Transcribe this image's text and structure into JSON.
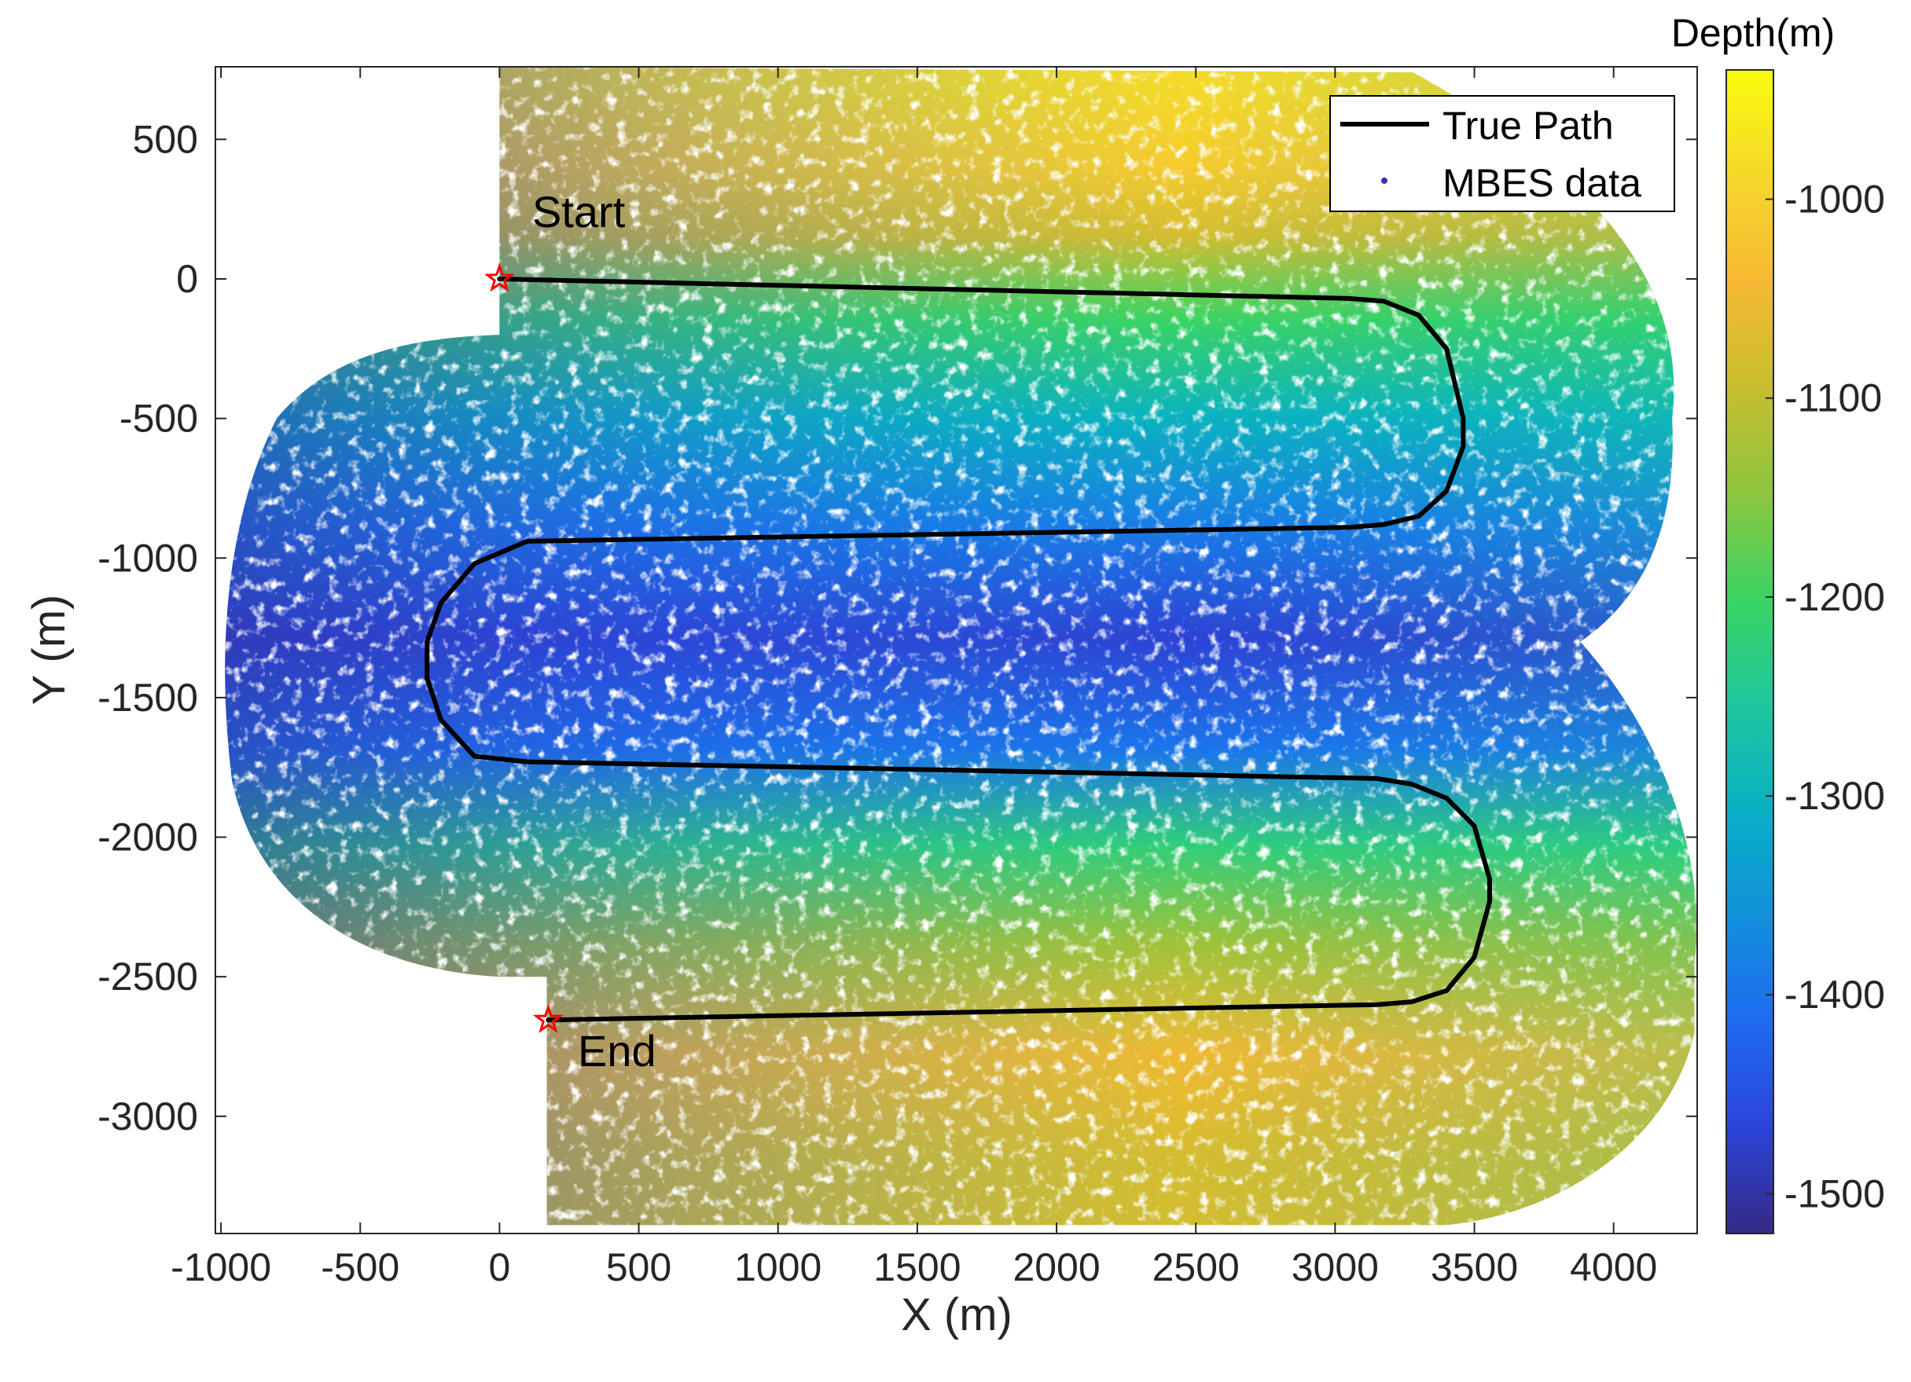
{
  "chart_data": {
    "type": "scatter",
    "xlabel": "X (m)",
    "ylabel": "Y (m)",
    "xlim": [
      -1020,
      4300
    ],
    "ylim": [
      -3420,
      760
    ],
    "xticks": [
      -1000,
      -500,
      0,
      500,
      1000,
      1500,
      2000,
      2500,
      3000,
      3500,
      4000
    ],
    "yticks": [
      500,
      0,
      -500,
      -1000,
      -1500,
      -2000,
      -2500,
      -3000
    ],
    "grid": false,
    "legend_position": "top-right",
    "series": [
      {
        "name": "True Path",
        "kind": "line",
        "color": "#000000",
        "x": [
          0,
          3050,
          3175,
          3300,
          3400,
          3460,
          3460,
          3400,
          3300,
          3175,
          3050,
          100,
          -90,
          -210,
          -260,
          -260,
          -210,
          -90,
          100,
          3150,
          3275,
          3400,
          3500,
          3555,
          3555,
          3500,
          3400,
          3275,
          3150,
          175
        ],
        "y": [
          0,
          -70,
          -80,
          -130,
          -250,
          -500,
          -600,
          -760,
          -850,
          -880,
          -890,
          -940,
          -1020,
          -1160,
          -1300,
          -1430,
          -1580,
          -1710,
          -1730,
          -1790,
          -1810,
          -1860,
          -1960,
          -2150,
          -2230,
          -2430,
          -2550,
          -2590,
          -2600,
          -2655
        ]
      },
      {
        "name": "MBES data",
        "kind": "scatter",
        "color": "#3b2eb8",
        "footprint": {
          "top_left_x": 0,
          "top_left_y": 760,
          "top_right_x": 3280,
          "right_outer_x": 4270,
          "bottom_left_x": 170,
          "bottom_y": -3390,
          "west_lobe_x": -1010,
          "west_lobe_y_top": -210,
          "west_lobe_y_bottom": -2480,
          "east_notch_x": 3880,
          "east_notch_y": -1300
        }
      }
    ],
    "markers": [
      {
        "label": "Start",
        "x": 0,
        "y": 0,
        "symbol": "star",
        "color": "#ff0000"
      },
      {
        "label": "End",
        "x": 175,
        "y": -2655,
        "symbol": "star",
        "color": "#ff0000"
      }
    ],
    "colorbar": {
      "title": "Depth(m)",
      "range": [
        -1520,
        -935
      ],
      "ticks": [
        -1000,
        -1100,
        -1200,
        -1300,
        -1400,
        -1500
      ],
      "colormap": "parula",
      "stops": [
        "#352a87",
        "#2c44d9",
        "#1f6bf0",
        "#1190db",
        "#08b0c4",
        "#1fc79e",
        "#3ad463",
        "#8dc63f",
        "#c7be2d",
        "#f7b933",
        "#f5d82a",
        "#f9fb0e"
      ]
    },
    "depth_field": {
      "note_stops": [
        {
          "y": 700,
          "depth": -985
        },
        {
          "y": 400,
          "depth": -1010
        },
        {
          "y": 150,
          "depth": -1080
        },
        {
          "y": -150,
          "depth": -1200
        },
        {
          "y": -500,
          "depth": -1300
        },
        {
          "y": -900,
          "depth": -1390
        },
        {
          "y": -1300,
          "depth": -1470
        },
        {
          "y": -1700,
          "depth": -1400
        },
        {
          "y": -2050,
          "depth": -1220
        },
        {
          "y": -2400,
          "depth": -1130
        },
        {
          "y": -2800,
          "depth": -1050
        },
        {
          "y": -3200,
          "depth": -1080
        }
      ]
    }
  }
}
